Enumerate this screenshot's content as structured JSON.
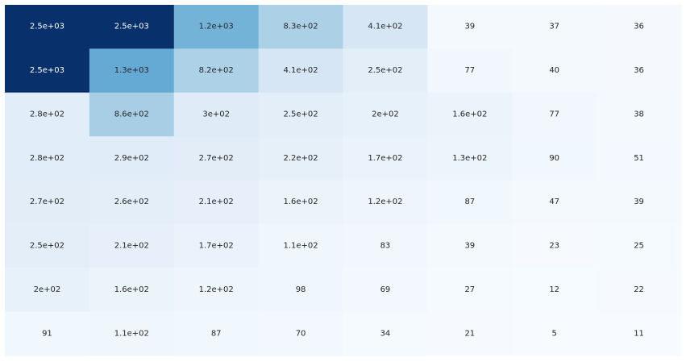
{
  "chart_data": {
    "type": "heatmap",
    "title": "",
    "xlabel": "",
    "ylabel": "",
    "colormap": "Blues",
    "color_range": [
      5,
      2500
    ],
    "colors": {
      "low": "#f7fbff",
      "high": "#08306b",
      "text_dark": "#262626",
      "text_light": "#ffffff"
    },
    "values": [
      [
        2500,
        2500,
        1200,
        830,
        410,
        39,
        37,
        36
      ],
      [
        2500,
        1300,
        820,
        410,
        250,
        77,
        40,
        36
      ],
      [
        280,
        860,
        300,
        250,
        200,
        160,
        77,
        38
      ],
      [
        280,
        290,
        270,
        220,
        170,
        130,
        90,
        51
      ],
      [
        270,
        260,
        210,
        160,
        120,
        87,
        47,
        39
      ],
      [
        250,
        210,
        170,
        110,
        83,
        39,
        23,
        25
      ],
      [
        200,
        160,
        120,
        98,
        69,
        27,
        12,
        22
      ],
      [
        91,
        110,
        87,
        70,
        34,
        21,
        5,
        11
      ]
    ],
    "annotations": [
      [
        "2.5e+03",
        "2.5e+03",
        "1.2e+03",
        "8.3e+02",
        "4.1e+02",
        "39",
        "37",
        "36"
      ],
      [
        "2.5e+03",
        "1.3e+03",
        "8.2e+02",
        "4.1e+02",
        "2.5e+02",
        "77",
        "40",
        "36"
      ],
      [
        "2.8e+02",
        "8.6e+02",
        "3e+02",
        "2.5e+02",
        "2e+02",
        "1.6e+02",
        "77",
        "38"
      ],
      [
        "2.8e+02",
        "2.9e+02",
        "2.7e+02",
        "2.2e+02",
        "1.7e+02",
        "1.3e+02",
        "90",
        "51"
      ],
      [
        "2.7e+02",
        "2.6e+02",
        "2.1e+02",
        "1.6e+02",
        "1.2e+02",
        "87",
        "47",
        "39"
      ],
      [
        "2.5e+02",
        "2.1e+02",
        "1.7e+02",
        "1.1e+02",
        "83",
        "39",
        "23",
        "25"
      ],
      [
        "2e+02",
        "1.6e+02",
        "1.2e+02",
        "98",
        "69",
        "27",
        "12",
        "22"
      ],
      [
        "91",
        "1.1e+02",
        "87",
        "70",
        "34",
        "21",
        "5",
        "11"
      ]
    ],
    "grid": false,
    "colorbar": false
  }
}
